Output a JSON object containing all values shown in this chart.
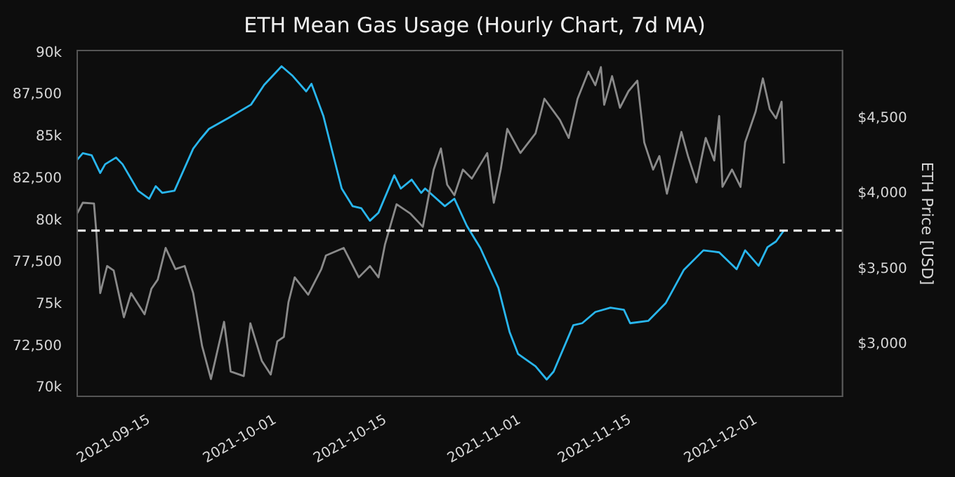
{
  "chart_data": {
    "type": "line",
    "title": "ETH Mean Gas Usage (Hourly Chart, 7d MA)",
    "y2label": "ETH Price [USD]",
    "xlim": [
      "2021-09-05T21:00",
      "2021-12-11T22:00"
    ],
    "xticks": [
      {
        "value": "2021-09-15",
        "label": "2021-09-15"
      },
      {
        "value": "2021-10-01",
        "label": "2021-10-01"
      },
      {
        "value": "2021-10-15",
        "label": "2021-10-15"
      },
      {
        "value": "2021-11-01",
        "label": "2021-11-01"
      },
      {
        "value": "2021-11-15",
        "label": "2021-11-15"
      },
      {
        "value": "2021-12-01",
        "label": "2021-12-01"
      }
    ],
    "ylim": [
      69500,
      90150
    ],
    "yticks": [
      {
        "value": 70000,
        "label": "70k"
      },
      {
        "value": 72500,
        "label": "72,500"
      },
      {
        "value": 75000,
        "label": "75k"
      },
      {
        "value": 77500,
        "label": "77,500"
      },
      {
        "value": 80000,
        "label": "80k"
      },
      {
        "value": 82500,
        "label": "82,500"
      },
      {
        "value": 85000,
        "label": "85k"
      },
      {
        "value": 87500,
        "label": "87,500"
      },
      {
        "value": 90000,
        "label": "90k"
      }
    ],
    "y2lim": [
      2655,
      4950
    ],
    "y2ticks": [
      {
        "value": 3000,
        "label": "$3,000"
      },
      {
        "value": 3500,
        "label": "$3,500"
      },
      {
        "value": 4000,
        "label": "$4,000"
      },
      {
        "value": 4500,
        "label": "$4,500"
      }
    ],
    "grid": false,
    "legend": false,
    "ref_lines": [
      {
        "axis": "y",
        "value": 79400,
        "color": "#ffffff",
        "line_style": "dashed"
      }
    ],
    "series": [
      {
        "color": "#8a8a8a",
        "axis": "y2",
        "x": [
          "2021-09-05T21:00",
          "2021-09-06T14:00",
          "2021-09-08T00:00",
          "2021-09-08T07:00",
          "2021-09-08T19:00",
          "2021-09-09T16:00",
          "2021-09-10T12:00",
          "2021-09-11T19:00",
          "2021-09-12T17:00",
          "2021-09-14T10:00",
          "2021-09-15T07:00",
          "2021-09-16T02:00",
          "2021-09-17T02:00",
          "2021-09-18T08:00",
          "2021-09-19T12:00",
          "2021-09-20T14:00",
          "2021-09-21T17:00",
          "2021-09-22T20:00",
          "2021-09-24T12:00",
          "2021-09-25T08:00",
          "2021-09-27T00:00",
          "2021-09-27T20:00",
          "2021-09-29T07:00",
          "2021-09-30T10:00",
          "2021-10-01T06:00",
          "2021-10-02T02:00",
          "2021-10-02T16:00",
          "2021-10-03T11:00",
          "2021-10-05T04:00",
          "2021-10-06T20:00",
          "2021-10-07T10:00",
          "2021-10-09T16:00",
          "2021-10-11T14:00",
          "2021-10-13T00:00",
          "2021-10-14T02:00",
          "2021-10-14T22:00",
          "2021-10-16T09:00",
          "2021-10-18T02:00",
          "2021-10-19T17:00",
          "2021-10-21T02:00",
          "2021-10-22T00:00",
          "2021-10-22T19:00",
          "2021-10-23T17:00",
          "2021-10-24T19:00",
          "2021-10-25T22:00",
          "2021-10-27T21:00",
          "2021-10-28T17:00",
          "2021-10-29T14:00",
          "2021-10-30T10:00",
          "2021-11-01T02:00",
          "2021-11-03T00:00",
          "2021-11-04T03:00",
          "2021-11-06T02:00",
          "2021-11-07T05:00",
          "2021-11-08T08:00",
          "2021-11-09T17:00",
          "2021-11-10T14:00",
          "2021-11-11T07:00",
          "2021-11-11T17:00",
          "2021-11-12T17:00",
          "2021-11-13T17:00",
          "2021-11-14T19:00",
          "2021-11-15T22:00",
          "2021-11-16T19:00",
          "2021-11-17T22:00",
          "2021-11-18T17:00",
          "2021-11-19T16:00",
          "2021-11-21T12:00",
          "2021-11-22T08:00",
          "2021-11-23T10:00",
          "2021-11-24T14:00",
          "2021-11-25T16:00",
          "2021-11-26T07:00",
          "2021-11-26T17:00",
          "2021-11-27T22:00",
          "2021-11-29T00:00",
          "2021-11-29T14:00",
          "2021-11-30T22:00",
          "2021-12-01T20:00",
          "2021-12-02T17:00",
          "2021-12-03T12:00",
          "2021-12-04T05:00",
          "2021-12-04T12:00"
        ],
        "values": [
          3870,
          3940,
          3935,
          3750,
          3340,
          3520,
          3490,
          3180,
          3340,
          3200,
          3370,
          3430,
          3640,
          3500,
          3520,
          3340,
          2990,
          2770,
          3150,
          2820,
          2790,
          3140,
          2890,
          2800,
          3020,
          3050,
          3280,
          3445,
          3330,
          3500,
          3590,
          3640,
          3445,
          3520,
          3445,
          3665,
          3930,
          3870,
          3780,
          4160,
          4300,
          4060,
          3990,
          4160,
          4100,
          4270,
          3940,
          4160,
          4430,
          4270,
          4400,
          4630,
          4490,
          4370,
          4630,
          4810,
          4720,
          4840,
          4590,
          4780,
          4570,
          4680,
          4750,
          4340,
          4160,
          4250,
          4000,
          4410,
          4250,
          4075,
          4370,
          4220,
          4515,
          4045,
          4160,
          4045,
          4340,
          4545,
          4765,
          4560,
          4500,
          4610,
          4200
        ]
      },
      {
        "color": "#29b6ee",
        "axis": "y",
        "x": [
          "2021-09-05T21:00",
          "2021-09-06T14:00",
          "2021-09-07T17:00",
          "2021-09-08T19:00",
          "2021-09-09T10:00",
          "2021-09-10T19:00",
          "2021-09-11T15:00",
          "2021-09-13T14:00",
          "2021-09-15T00:00",
          "2021-09-15T20:00",
          "2021-09-16T16:00",
          "2021-09-18T05:00",
          "2021-09-20T14:00",
          "2021-09-21T10:00",
          "2021-09-22T14:00",
          "2021-09-25T02:00",
          "2021-09-27T22:00",
          "2021-09-29T14:00",
          "2021-10-01T19:00",
          "2021-10-03T05:00",
          "2021-10-04T22:00",
          "2021-10-05T14:00",
          "2021-10-07T02:00",
          "2021-10-08T05:00",
          "2021-10-09T10:00",
          "2021-10-10T19:00",
          "2021-10-11T22:00",
          "2021-10-13T00:00",
          "2021-10-14T02:00",
          "2021-10-16T02:00",
          "2021-10-16T22:00",
          "2021-10-18T07:00",
          "2021-10-19T12:00",
          "2021-10-20T00:00",
          "2021-10-22T12:00",
          "2021-10-23T17:00",
          "2021-10-25T07:00",
          "2021-10-27T00:00",
          "2021-10-29T07:00",
          "2021-10-30T17:00",
          "2021-10-31T19:00",
          "2021-11-03T00:00",
          "2021-11-04T10:00",
          "2021-11-05T07:00",
          "2021-11-07T19:00",
          "2021-11-08T22:00",
          "2021-11-10T14:00",
          "2021-11-12T12:00",
          "2021-11-14T05:00",
          "2021-11-15T00:00",
          "2021-11-17T07:00",
          "2021-11-19T12:00",
          "2021-11-21T19:00",
          "2021-11-24T07:00",
          "2021-11-26T07:00",
          "2021-11-28T12:00",
          "2021-11-29T14:00",
          "2021-12-01T07:00",
          "2021-12-02T10:00",
          "2021-12-03T12:00",
          "2021-12-04T12:00"
        ],
        "values": [
          83630,
          84020,
          83890,
          82840,
          83360,
          83760,
          83360,
          81780,
          81300,
          82050,
          81650,
          81780,
          84290,
          84810,
          85470,
          86130,
          86920,
          88100,
          89210,
          88630,
          87710,
          88160,
          86260,
          84150,
          81910,
          80860,
          80730,
          79990,
          80470,
          82700,
          81910,
          82440,
          81650,
          81910,
          80860,
          81300,
          79680,
          78360,
          75980,
          73350,
          72030,
          71300,
          70510,
          70980,
          73750,
          73870,
          74540,
          74800,
          74670,
          73870,
          74010,
          75060,
          77040,
          78220,
          78100,
          77090,
          78220,
          77300,
          78410,
          78750,
          79410
        ]
      }
    ]
  }
}
